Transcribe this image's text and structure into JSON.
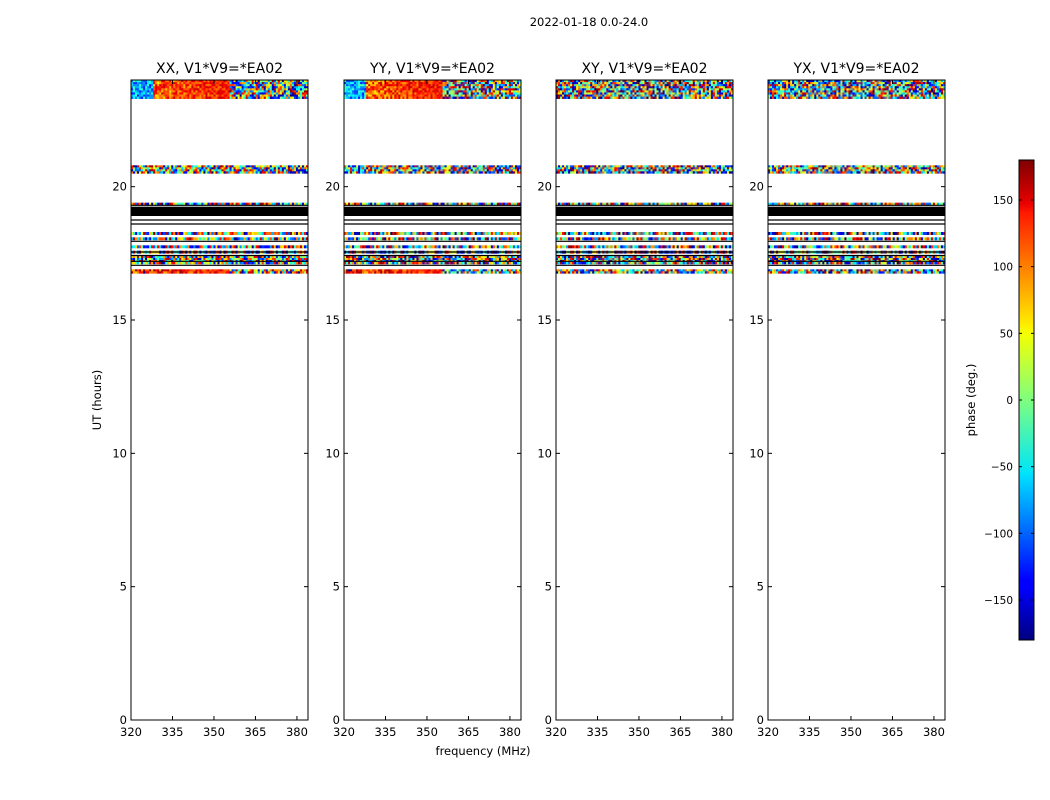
{
  "chart_data": {
    "type": "heatmap",
    "suptitle": "2022-01-18 0.0-24.0",
    "xlabel": "frequency (MHz)",
    "ylabel": "UT (hours)",
    "xlim": [
      320,
      384
    ],
    "ylim": [
      0,
      24
    ],
    "xticks": [
      320,
      335,
      350,
      365,
      380
    ],
    "yticks": [
      0,
      5,
      10,
      15,
      20
    ],
    "panels": [
      {
        "title": "XX, V1*V9=*EA02",
        "phase_structure": "smooth_ramp"
      },
      {
        "title": "YY, V1*V9=*EA02",
        "phase_structure": "smooth_ramp"
      },
      {
        "title": "XY, V1*V9=*EA02",
        "phase_structure": "noise"
      },
      {
        "title": "YX, V1*V9=*EA02",
        "phase_structure": "noise"
      }
    ],
    "data_bands_ut_hours": [
      [
        23.3,
        24.0
      ],
      [
        20.5,
        20.8
      ],
      [
        19.3,
        19.4
      ],
      [
        18.2,
        18.3
      ],
      [
        18.0,
        18.1
      ],
      [
        17.7,
        17.8
      ],
      [
        17.5,
        17.6
      ],
      [
        17.1,
        17.4
      ],
      [
        16.75,
        16.9
      ]
    ],
    "flagged_black_band_ut_hours": [
      18.9,
      19.25
    ],
    "flag_lines_ut_hours": [
      19.3,
      18.75,
      18.6,
      17.95,
      17.55,
      17.42,
      17.2,
      17.05
    ],
    "colorbar": {
      "label": "phase (deg.)",
      "range": [
        -180,
        180
      ],
      "ticks": [
        150,
        100,
        50,
        0,
        -50,
        -100,
        -150
      ],
      "colormap": "jet"
    }
  }
}
